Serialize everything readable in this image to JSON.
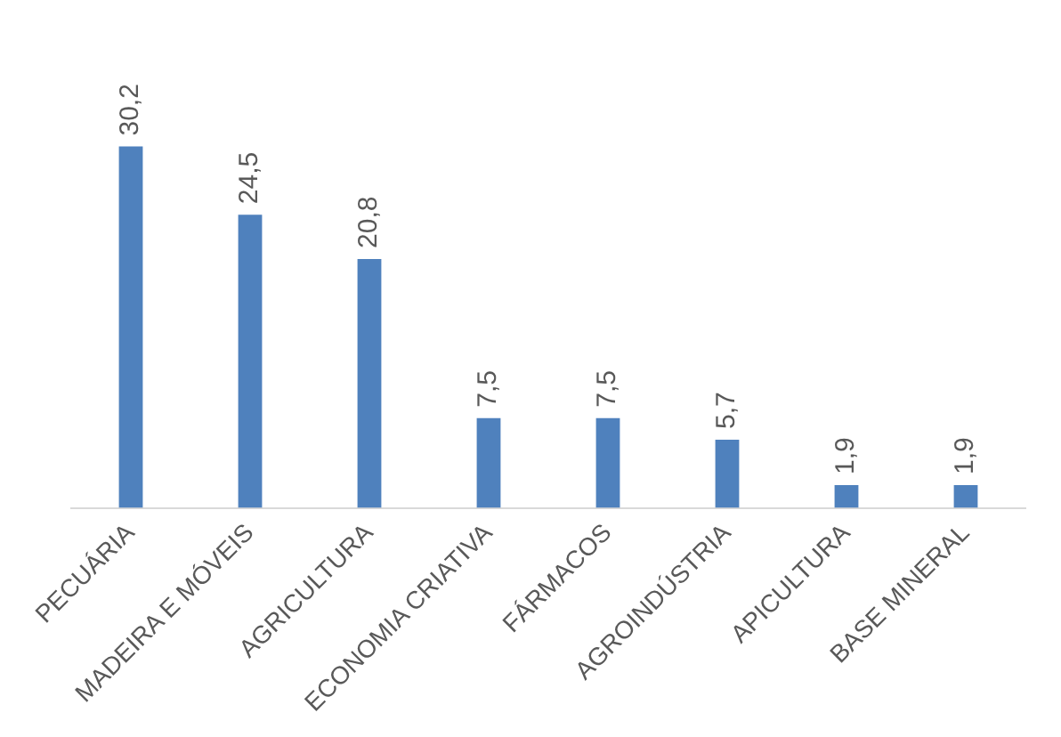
{
  "chart_data": {
    "type": "bar",
    "categories": [
      "PECUÁRIA",
      "MADEIRA E MÓVEIS",
      "AGRICULTURA",
      "ECONOMIA CRIATIVA",
      "FÁRMACOS",
      "AGROINDÚSTRIA",
      "APICULTURA",
      "BASE MINERAL"
    ],
    "values": [
      30.2,
      24.5,
      20.8,
      7.5,
      7.5,
      5.7,
      1.9,
      1.9
    ],
    "value_labels": [
      "30,2",
      "24,5",
      "20,8",
      "7,5",
      "7,5",
      "5,7",
      "1,9",
      "1,9"
    ],
    "color": "#4f81bd",
    "grid": false,
    "legend": false
  }
}
